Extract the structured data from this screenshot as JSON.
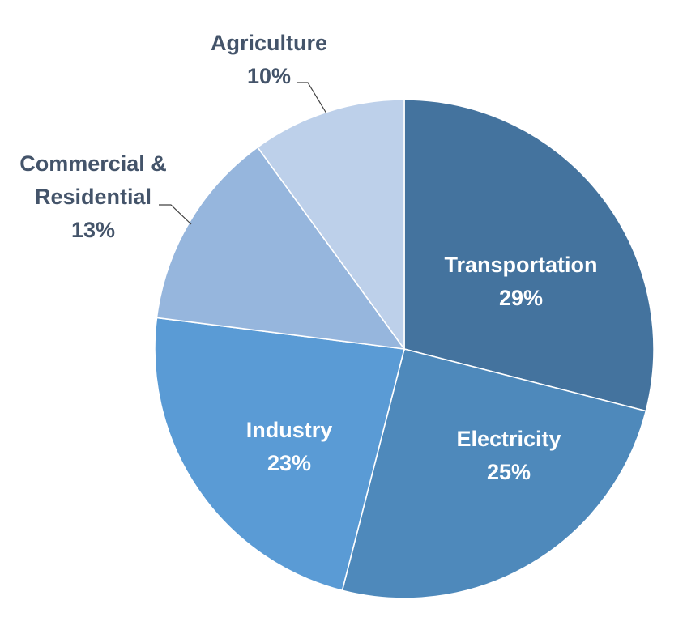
{
  "chart_data": {
    "type": "pie",
    "title": "",
    "slices": [
      {
        "label": "Transportation",
        "pct_label": "29%",
        "value": 29,
        "color": "#44739e",
        "placement": "inside"
      },
      {
        "label": "Electricity",
        "pct_label": "25%",
        "value": 25,
        "color": "#4e89bb",
        "placement": "inside"
      },
      {
        "label": "Industry",
        "pct_label": "23%",
        "value": 23,
        "color": "#5a9bd5",
        "placement": "inside"
      },
      {
        "label_lines": [
          "Commercial &",
          "Residential"
        ],
        "pct_label": "13%",
        "value": 13,
        "color": "#96b6dd",
        "placement": "outside"
      },
      {
        "label": "Agriculture",
        "pct_label": "10%",
        "value": 10,
        "color": "#bdd0ea",
        "placement": "outside"
      }
    ],
    "legend": "none"
  }
}
